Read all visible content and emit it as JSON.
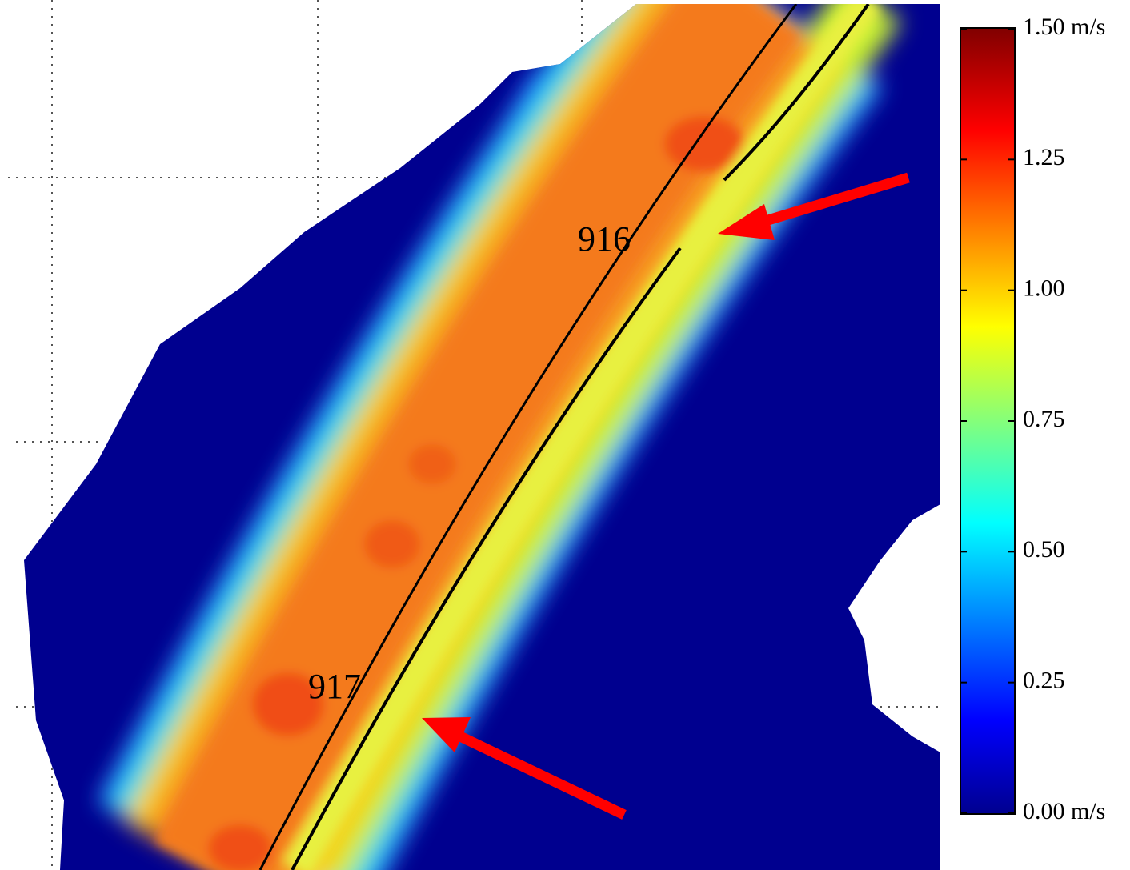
{
  "map": {
    "labels": [
      "916",
      "917"
    ],
    "colorbar": {
      "lim": [
        0,
        1.5
      ],
      "ticks": [
        {
          "value": 1.5,
          "label": "1.50 m/s"
        },
        1.25,
        {
          "value": 1.0,
          "label": "1.00"
        },
        0.75,
        {
          "value": 0.5,
          "label": "0.50"
        },
        0.25,
        {
          "value": 0.0,
          "label": "0.00 m/s"
        }
      ]
    }
  }
}
